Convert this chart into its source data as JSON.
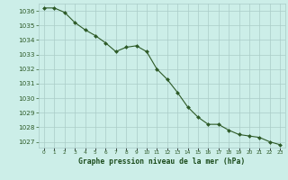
{
  "x": [
    0,
    1,
    2,
    3,
    4,
    5,
    6,
    7,
    8,
    9,
    10,
    11,
    12,
    13,
    14,
    15,
    16,
    17,
    18,
    19,
    20,
    21,
    22,
    23
  ],
  "y": [
    1036.2,
    1036.2,
    1035.9,
    1035.2,
    1034.7,
    1034.3,
    1033.8,
    1033.2,
    1033.5,
    1033.6,
    1033.2,
    1032.0,
    1031.3,
    1030.4,
    1029.4,
    1028.7,
    1028.2,
    1028.2,
    1027.8,
    1027.5,
    1027.4,
    1027.3,
    1027.0,
    1026.8
  ],
  "line_color": "#2d5a27",
  "marker_color": "#2d5a27",
  "bg_color": "#cceee8",
  "grid_color": "#aaccc8",
  "xlabel": "Graphe pression niveau de la mer (hPa)",
  "xlabel_color": "#1a4a1a",
  "tick_color": "#2d5a27",
  "ylim": [
    1026.6,
    1036.5
  ],
  "xlim": [
    -0.5,
    23.5
  ],
  "yticks": [
    1027,
    1028,
    1029,
    1030,
    1031,
    1032,
    1033,
    1034,
    1035,
    1036
  ],
  "xtick_labels": [
    "0",
    "1",
    "2",
    "3",
    "4",
    "5",
    "6",
    "7",
    "8",
    "9",
    "10",
    "11",
    "12",
    "13",
    "14",
    "15",
    "16",
    "17",
    "18",
    "19",
    "20",
    "21",
    "22",
    "23"
  ]
}
